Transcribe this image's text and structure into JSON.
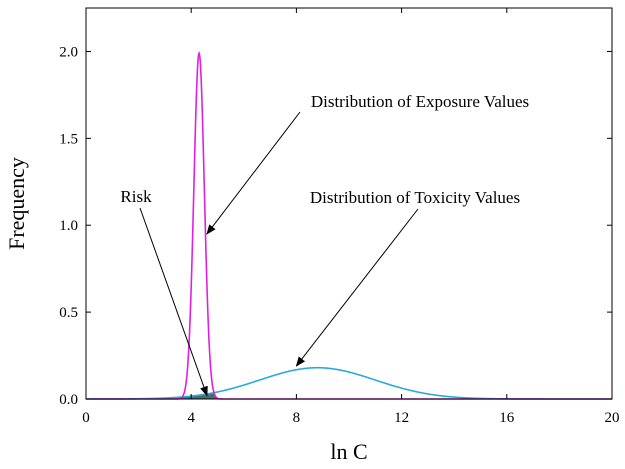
{
  "chart_data": {
    "type": "line",
    "title": "",
    "xlabel": "ln C",
    "ylabel": "Frequency",
    "xlim": [
      0,
      20
    ],
    "ylim": [
      0,
      2.25
    ],
    "xticks": [
      0,
      4,
      8,
      12,
      16,
      20
    ],
    "xtick_labels": [
      "0",
      "4",
      "8",
      "12",
      "16",
      "20"
    ],
    "yticks": [
      0,
      0.5,
      1.0,
      1.5,
      2.0
    ],
    "ytick_labels": [
      "0.0",
      "0.5",
      "1.0",
      "1.5",
      "2.0"
    ],
    "grid": false,
    "legend": "none",
    "series": [
      {
        "kind": "exposure",
        "distribution": "normal",
        "mean": 4.3,
        "sd": 0.2,
        "peak": 1.99,
        "color": "#e020e0"
      },
      {
        "kind": "toxicity",
        "distribution": "normal",
        "mean": 8.8,
        "sd": 2.2,
        "peak": 0.18,
        "color": "#29a9e0"
      }
    ],
    "overlap_region": {
      "color": "#4d6b6b"
    },
    "annotations": [
      {
        "text": "Distribution of Exposure Values",
        "target": [
          4.6,
          0.95
        ]
      },
      {
        "text": "Distribution of Toxicity Values",
        "target": [
          8.0,
          0.19
        ]
      },
      {
        "text": "Risk",
        "target": [
          4.6,
          0.02
        ]
      }
    ]
  }
}
